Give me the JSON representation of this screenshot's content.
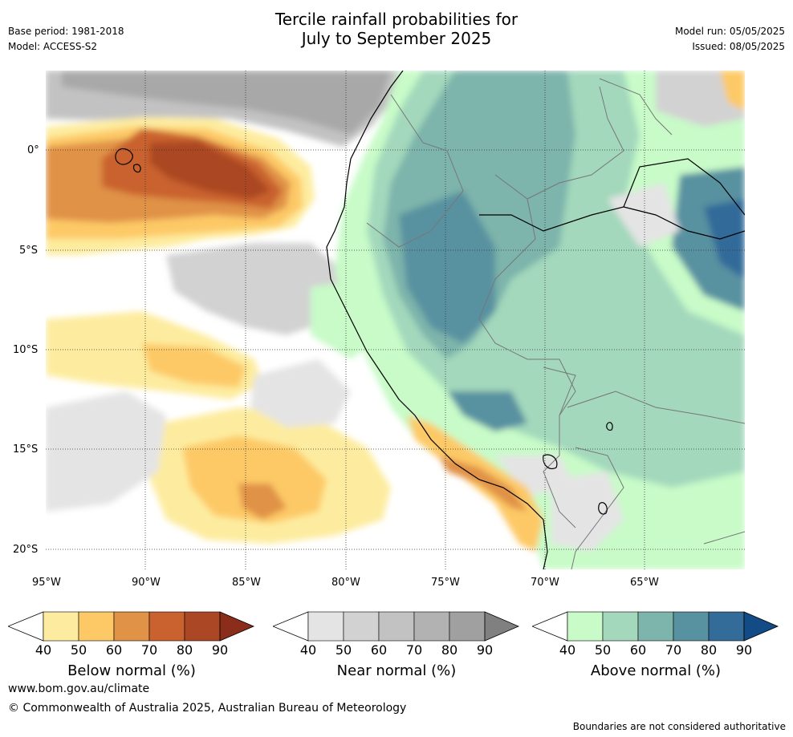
{
  "header": {
    "title_line1": "Tercile rainfall probabilities for",
    "title_line2": "July to September 2025",
    "base_period": "Base period: 1981-2018",
    "model": "Model: ACCESS-S2",
    "model_run": "Model run: 05/05/2025",
    "issued": "Issued: 08/05/2025"
  },
  "map": {
    "lat_labels": [
      "0°",
      "5°S",
      "10°S",
      "15°S",
      "20°S"
    ],
    "lon_labels": [
      "95°W",
      "90°W",
      "85°W",
      "80°W",
      "75°W",
      "70°W",
      "65°W"
    ]
  },
  "legend": {
    "below": {
      "title": "Below normal (%)",
      "ticks": [
        "40",
        "50",
        "60",
        "70",
        "80",
        "90"
      ],
      "colors": [
        "#ffffff",
        "#fdec9f",
        "#fdc966",
        "#e09246",
        "#c9622f",
        "#ab4724",
        "#8a2d1b"
      ]
    },
    "near": {
      "title": "Near normal (%)",
      "ticks": [
        "40",
        "50",
        "60",
        "70",
        "80",
        "90"
      ],
      "colors": [
        "#ffffff",
        "#e4e4e4",
        "#d2d2d2",
        "#c2c2c2",
        "#b2b2b2",
        "#a0a0a0",
        "#808080"
      ]
    },
    "above": {
      "title": "Above normal (%)",
      "ticks": [
        "40",
        "50",
        "60",
        "70",
        "80",
        "90"
      ],
      "colors": [
        "#ffffff",
        "#c8fbc8",
        "#a3d8bc",
        "#7db4ab",
        "#5891a0",
        "#336b99",
        "#124b86"
      ]
    }
  },
  "footer": {
    "website": "www.bom.gov.au/climate",
    "copyright": "© Commonwealth of Australia 2025, Australian Bureau of Meteorology",
    "disclaimer": "Boundaries are not considered authoritative"
  }
}
